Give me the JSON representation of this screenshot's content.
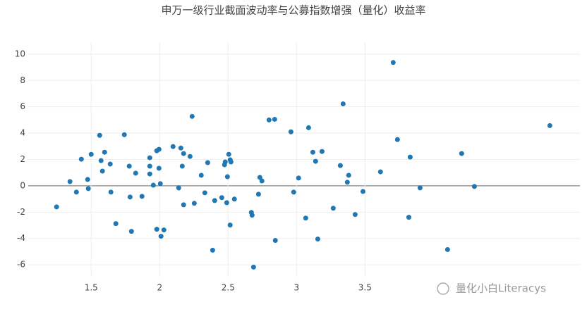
{
  "chart_data": {
    "type": "scatter",
    "title": "申万一级行业截面波动率与公募指数增强（量化）收益率",
    "annotation": "量化小白Literacys",
    "color": "#1f77b4",
    "grid": true,
    "zeroline": true,
    "xlim": [
      1.04,
      5.07
    ],
    "xticks": [
      1.5,
      2,
      2.5,
      3,
      3.5
    ],
    "ylim": [
      -6.9,
      10.9
    ],
    "yticks": [
      -6,
      -4,
      -2,
      0,
      2,
      4,
      6,
      8,
      10
    ],
    "x": [
      1.247,
      1.345,
      1.392,
      1.428,
      1.474,
      1.479,
      1.5,
      1.562,
      1.572,
      1.582,
      1.598,
      1.639,
      1.644,
      1.68,
      1.742,
      1.778,
      1.784,
      1.794,
      1.825,
      1.871,
      1.928,
      1.928,
      1.928,
      1.954,
      1.979,
      1.979,
      1.995,
      1.995,
      2.005,
      2.01,
      2.031,
      2.098,
      2.139,
      2.155,
      2.165,
      2.175,
      2.175,
      2.222,
      2.237,
      2.253,
      2.304,
      2.33,
      2.351,
      2.387,
      2.402,
      2.454,
      2.474,
      2.479,
      2.49,
      2.495,
      2.505,
      2.515,
      2.521,
      2.515,
      2.546,
      2.67,
      2.675,
      2.686,
      2.722,
      2.732,
      2.747,
      2.799,
      2.84,
      2.845,
      2.959,
      2.979,
      3.015,
      3.067,
      3.088,
      3.119,
      3.139,
      3.155,
      3.186,
      3.268,
      3.32,
      3.34,
      3.371,
      3.381,
      3.428,
      3.485,
      3.613,
      3.706,
      3.737,
      3.82,
      3.83,
      3.902,
      4.103,
      4.206,
      4.299,
      4.85
    ],
    "values": [
      -1.6,
      0.32,
      -0.48,
      2.02,
      0.48,
      -0.21,
      2.39,
      3.83,
      1.91,
      1.12,
      2.55,
      1.65,
      -0.48,
      -2.87,
      3.88,
      1.49,
      -0.85,
      -3.46,
      0.96,
      -0.8,
      2.13,
      1.49,
      0.9,
      0.05,
      2.66,
      -3.3,
      2.77,
      1.33,
      0.16,
      -3.83,
      -3.35,
      2.98,
      -0.16,
      2.87,
      1.49,
      2.45,
      -1.44,
      2.23,
      5.27,
      -1.33,
      0.8,
      -0.53,
      1.76,
      -4.89,
      -1.12,
      -0.9,
      1.6,
      1.81,
      -1.28,
      0.69,
      2.39,
      1.97,
      1.81,
      -2.98,
      -1.01,
      -2.02,
      -2.23,
      -6.17,
      -0.64,
      0.64,
      0.37,
      5.0,
      5.05,
      -4.15,
      4.1,
      -0.48,
      0.59,
      -2.45,
      4.41,
      2.55,
      1.86,
      -4.04,
      2.61,
      -1.7,
      1.54,
      6.22,
      0.27,
      0.8,
      -2.18,
      -0.43,
      1.06,
      9.36,
      3.51,
      -2.39,
      2.18,
      -0.16,
      -4.84,
      2.45,
      -0.05,
      4.57
    ]
  }
}
